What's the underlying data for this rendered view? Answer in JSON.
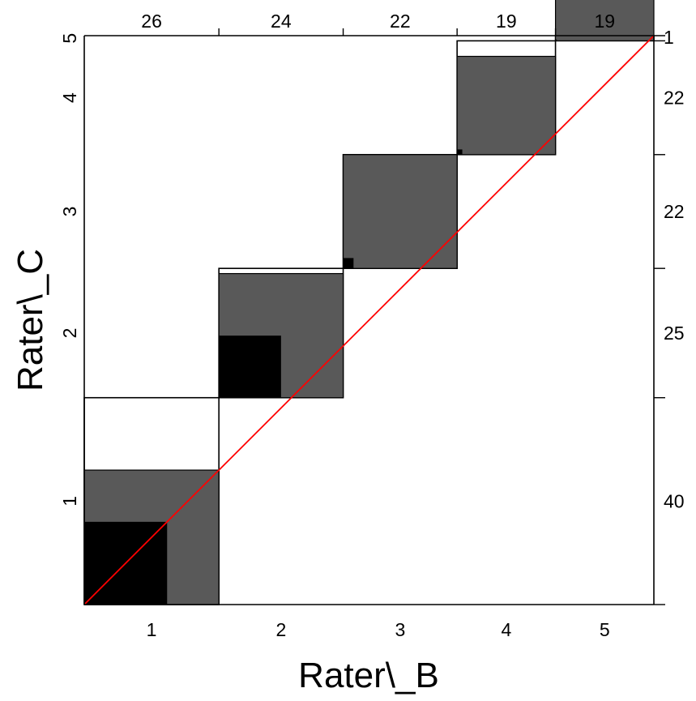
{
  "chart_data": {
    "type": "agreement",
    "xlabel": "Rater\\_B",
    "ylabel": "Rater\\_C",
    "categories": [
      "1",
      "2",
      "3",
      "4",
      "5"
    ],
    "x_ticks": [
      "1",
      "2",
      "3",
      "4",
      "5"
    ],
    "y_ticks": [
      "1",
      "2",
      "3",
      "4",
      "5"
    ],
    "col_totals": [
      26,
      24,
      22,
      19,
      19
    ],
    "row_totals": [
      40,
      25,
      22,
      22,
      1
    ],
    "row_total_labels": [
      "40",
      "25",
      "22",
      "22",
      "1"
    ],
    "partial_agreement": [
      26,
      24,
      22,
      19,
      19
    ],
    "exact_agreement": [
      16,
      12,
      2,
      1,
      0
    ],
    "diagonal_line": true,
    "colors": {
      "exact": "#000000",
      "partial": "#595959",
      "diagonal": "#ff0000",
      "outline": "#000000"
    }
  }
}
